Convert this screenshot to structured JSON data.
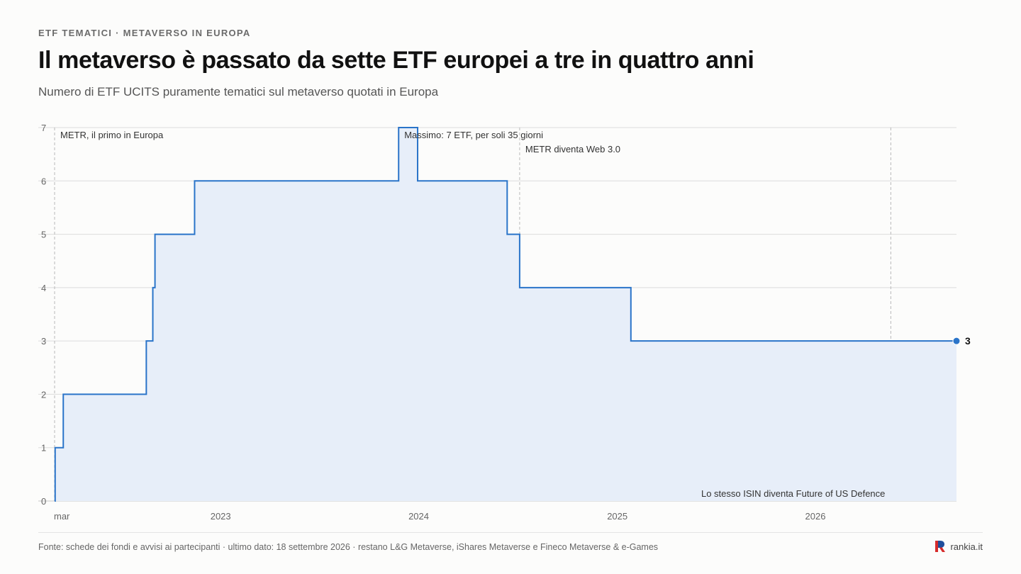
{
  "header": {
    "kicker": "ETF TEMATICI · METAVERSO IN EUROPA",
    "title": "Il metaverso è passato da sette ETF europei a tre in quattro anni",
    "subtitle": "Numero di ETF UCITS puramente tematici sul metaverso quotati in Europa"
  },
  "footer": {
    "source": "Fonte: schede dei fondi e avvisi ai partecipanti · ultimo dato: 18 settembre 2026 · restano L&G Metaverse, iShares Metaverse e Fineco Metaverse & e-Games",
    "brand": "rankia.it"
  },
  "colors": {
    "line": "#2a74c9",
    "area": "#e7eef9",
    "grid": "#dcdcdc",
    "annotation_line": "#b9b9b9",
    "brand_red": "#d62b2b",
    "brand_blue": "#1f4e9c"
  },
  "chart_data": {
    "type": "area",
    "step": true,
    "xlim": [
      "2022-03-01",
      "2026-09-18"
    ],
    "ylim": [
      0,
      7
    ],
    "yticks": [
      0,
      1,
      2,
      3,
      4,
      5,
      6,
      7
    ],
    "xticks": [
      {
        "date": "2022-03-01",
        "label": "mar"
      },
      {
        "date": "2023-01-01",
        "label": "2023"
      },
      {
        "date": "2024-01-01",
        "label": "2024"
      },
      {
        "date": "2025-01-01",
        "label": "2025"
      },
      {
        "date": "2026-01-01",
        "label": "2026"
      }
    ],
    "grid": true,
    "series": [
      {
        "points": [
          {
            "date": "2022-03-01",
            "value": 0
          },
          {
            "date": "2022-03-02",
            "value": 1
          },
          {
            "date": "2022-03-17",
            "value": 2
          },
          {
            "date": "2022-08-17",
            "value": 3
          },
          {
            "date": "2022-08-29",
            "value": 4
          },
          {
            "date": "2022-09-02",
            "value": 5
          },
          {
            "date": "2022-11-14",
            "value": 6
          },
          {
            "date": "2023-11-25",
            "value": 7
          },
          {
            "date": "2023-12-30",
            "value": 6
          },
          {
            "date": "2024-06-12",
            "value": 5
          },
          {
            "date": "2024-07-05",
            "value": 4
          },
          {
            "date": "2025-01-26",
            "value": 3
          },
          {
            "date": "2026-09-18",
            "value": 3
          }
        ]
      }
    ],
    "end_label": "3",
    "annotations": [
      {
        "date": "2022-03-01",
        "text": "METR, il primo in Europa",
        "row": 0,
        "side": "right"
      },
      {
        "date": "2023-11-25",
        "text": "Massimo: 7 ETF, per soli 35 giorni",
        "row": 0,
        "side": "right"
      },
      {
        "date": "2024-07-05",
        "text": "METR diventa Web 3.0",
        "row": 1,
        "side": "right"
      },
      {
        "date": "2026-05-20",
        "text": "Lo stesso ISIN diventa Future of US Defence",
        "row": "bottom",
        "side": "left"
      }
    ]
  }
}
